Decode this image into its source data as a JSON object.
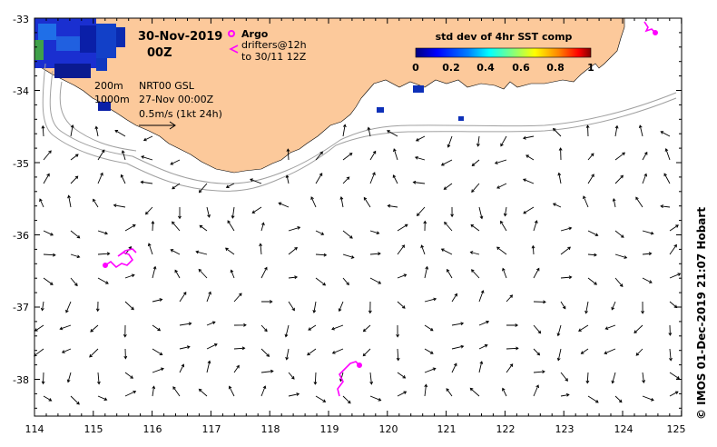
{
  "title": {
    "date": "30-Nov-2019",
    "time": "00Z"
  },
  "legend": {
    "argo_label": "Argo",
    "drifters_label": "drifters@12h",
    "drifters_sub": "to 30/11 12Z",
    "contour_200": "200m",
    "contour_1000": "1000m",
    "product": "NRT00 GSL",
    "product_date": "27-Nov 00:00Z",
    "scale_label": "0.5m/s (1kt 24h)"
  },
  "colorbar": {
    "title": "std dev of 4hr SST comp",
    "ticks": [
      "0",
      "0.2",
      "0.4",
      "0.6",
      "0.8",
      "1"
    ],
    "stops": [
      "#00007f",
      "#0000ff",
      "#0080ff",
      "#00ffff",
      "#80ff80",
      "#ffff00",
      "#ff8000",
      "#ff0000",
      "#800000"
    ]
  },
  "x_axis": [
    "114",
    "115",
    "116",
    "117",
    "118",
    "119",
    "120",
    "121",
    "122",
    "123",
    "124",
    "125"
  ],
  "y_axis": [
    "-33",
    "-34",
    "-35",
    "-36",
    "-37",
    "-38"
  ],
  "credit": "© IMOS 01-Dec-2019 21:07 Hobart",
  "colors": {
    "land": "#fcc99b",
    "drifter": "#ff00ff",
    "contour": "#a0a0a0"
  }
}
